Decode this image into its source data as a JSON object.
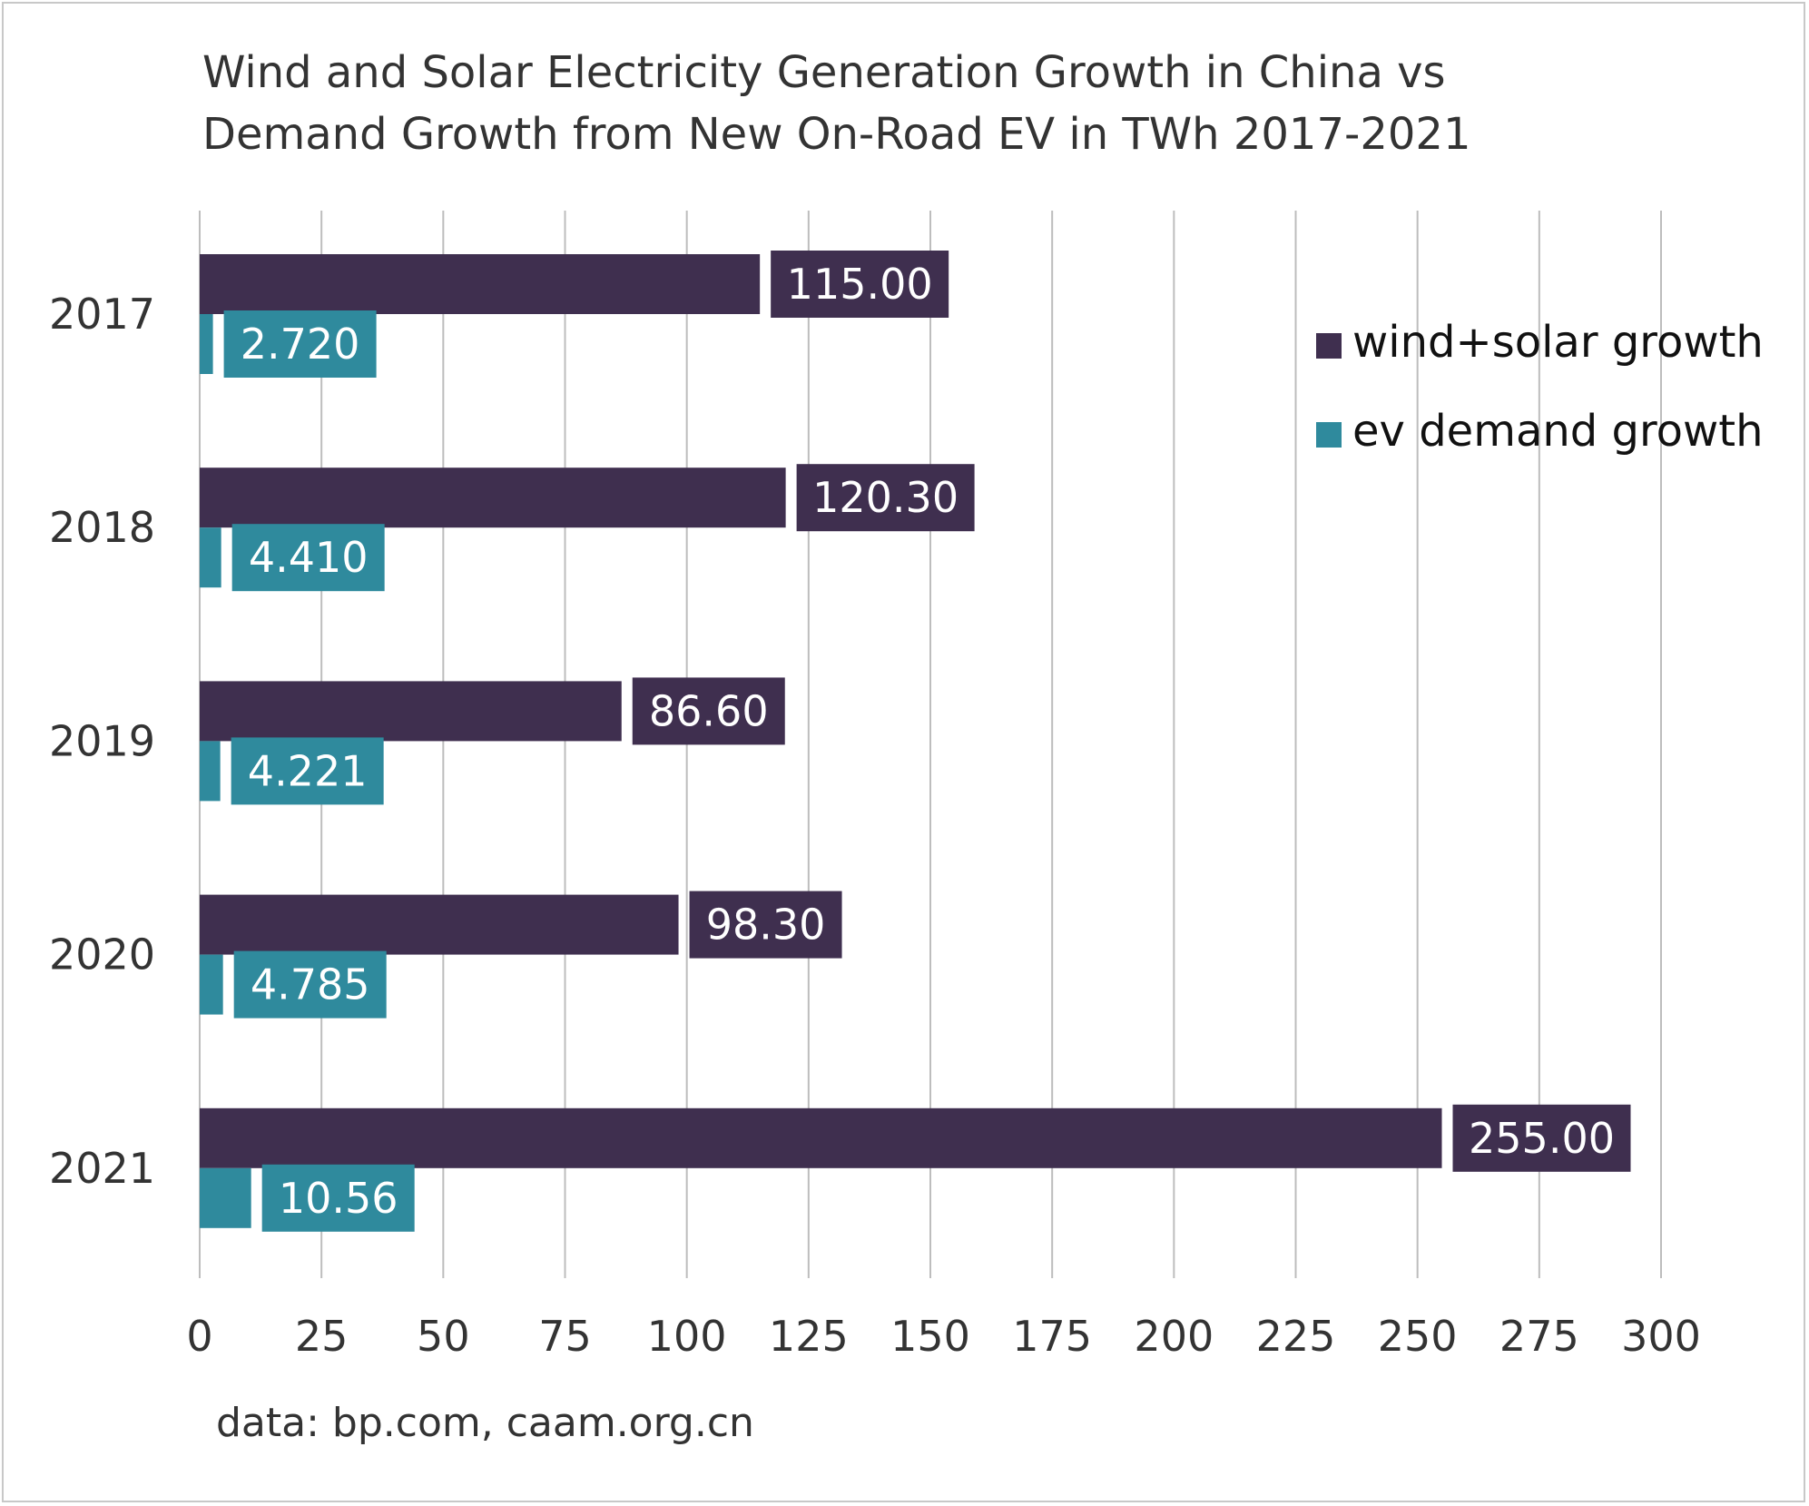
{
  "chart_data": {
    "type": "bar",
    "orientation": "horizontal",
    "title_lines": [
      "Wind and Solar Electricity Generation Growth in China vs",
      "Demand Growth from New On-Road EV in TWh 2017-2021"
    ],
    "categories": [
      "2017",
      "2018",
      "2019",
      "2020",
      "2021"
    ],
    "series": [
      {
        "name": "wind+solar growth",
        "color": "#3f2f4f",
        "values": [
          115.0,
          120.3,
          86.6,
          98.3,
          255.0
        ],
        "labels": [
          "115.00",
          "120.30",
          "86.60",
          "98.30",
          "255.00"
        ]
      },
      {
        "name": "ev demand growth",
        "color": "#2f8a9d",
        "values": [
          2.72,
          4.41,
          4.221,
          4.785,
          10.56
        ],
        "labels": [
          "2.720",
          "4.410",
          "4.221",
          "4.785",
          "10.56"
        ]
      }
    ],
    "xlim": [
      0,
      300
    ],
    "xticks": [
      "0",
      "25",
      "50",
      "75",
      "100",
      "125",
      "150",
      "175",
      "200",
      "225",
      "250",
      "275",
      "300"
    ],
    "grid": "vertical",
    "legend": "right",
    "source": "data: bp.com, caam.org.cn"
  }
}
